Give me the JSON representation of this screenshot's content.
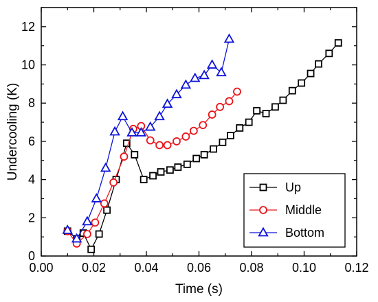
{
  "chart_data": {
    "type": "line",
    "xlabel": "Time (s)",
    "ylabel": "Undercooling (K)",
    "xlim": [
      0.0,
      0.12
    ],
    "ylim": [
      0,
      13
    ],
    "xticks": [
      0.0,
      0.02,
      0.04,
      0.06,
      0.08,
      0.1,
      0.12
    ],
    "xtick_labels": [
      "0.00",
      "0.02",
      "0.04",
      "0.06",
      "0.08",
      "0.10",
      "0.12"
    ],
    "yticks": [
      0,
      2,
      4,
      6,
      8,
      10,
      12
    ],
    "ytick_labels": [
      "0",
      "2",
      "4",
      "6",
      "8",
      "10",
      "12"
    ],
    "legend_position": "bottom-right",
    "grid": false,
    "series": [
      {
        "name": "Up",
        "color": "#000000",
        "marker": "square",
        "x": [
          0.01,
          0.0135,
          0.016,
          0.019,
          0.022,
          0.025,
          0.0285,
          0.0325,
          0.0355,
          0.039,
          0.0425,
          0.0455,
          0.049,
          0.052,
          0.0555,
          0.059,
          0.062,
          0.0655,
          0.069,
          0.072,
          0.0755,
          0.079,
          0.082,
          0.0855,
          0.089,
          0.092,
          0.0955,
          0.099,
          0.1025,
          0.1055,
          0.1095,
          0.113
        ],
        "y": [
          1.3,
          0.9,
          1.2,
          0.35,
          1.15,
          2.4,
          4.0,
          5.9,
          5.3,
          4.0,
          4.2,
          4.4,
          4.5,
          4.65,
          4.8,
          5.1,
          5.3,
          5.6,
          5.95,
          6.3,
          6.7,
          7.0,
          7.6,
          7.45,
          7.8,
          8.15,
          8.65,
          9.05,
          9.55,
          10.05,
          10.6,
          11.15
        ]
      },
      {
        "name": "Middle",
        "color": "#e8141a",
        "marker": "circle",
        "x": [
          0.01,
          0.0135,
          0.0175,
          0.0205,
          0.024,
          0.0275,
          0.0315,
          0.035,
          0.038,
          0.0415,
          0.045,
          0.048,
          0.0515,
          0.055,
          0.058,
          0.0615,
          0.065,
          0.068,
          0.0715,
          0.0745
        ],
        "y": [
          1.3,
          0.65,
          1.15,
          1.75,
          2.75,
          3.85,
          5.2,
          6.65,
          6.8,
          6.05,
          5.8,
          5.8,
          6.0,
          6.25,
          6.55,
          6.85,
          7.4,
          7.8,
          8.1,
          8.6
        ]
      },
      {
        "name": "Bottom",
        "color": "#0e14d8",
        "marker": "triangle",
        "x": [
          0.01,
          0.0135,
          0.0175,
          0.021,
          0.0245,
          0.028,
          0.031,
          0.0345,
          0.038,
          0.0415,
          0.045,
          0.048,
          0.0515,
          0.055,
          0.0585,
          0.062,
          0.065,
          0.0685,
          0.0715
        ],
        "y": [
          1.35,
          0.9,
          1.8,
          3.0,
          4.6,
          6.5,
          7.3,
          6.45,
          6.45,
          6.75,
          7.3,
          7.95,
          8.45,
          8.95,
          9.3,
          9.45,
          10.0,
          9.6,
          11.35
        ]
      }
    ]
  }
}
